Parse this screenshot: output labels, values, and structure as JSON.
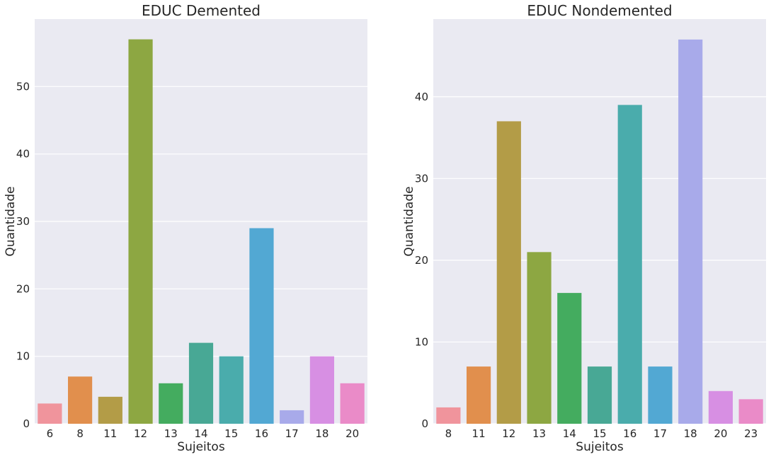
{
  "chart_data": [
    {
      "type": "bar",
      "title": "EDUC Demented",
      "xlabel": "Sujeitos",
      "ylabel": "Quantidade",
      "categories": [
        "6",
        "8",
        "11",
        "12",
        "13",
        "14",
        "15",
        "16",
        "17",
        "18",
        "20"
      ],
      "values": [
        3,
        7,
        4,
        57,
        6,
        12,
        10,
        29,
        2,
        10,
        6
      ],
      "ylim": [
        0,
        60
      ],
      "yticks": [
        0,
        10,
        20,
        30,
        40,
        50
      ],
      "grid": true,
      "colors": [
        "#f0949c",
        "#e18f4d",
        "#b39c47",
        "#8da742",
        "#44ac5f",
        "#48a895",
        "#4aacac",
        "#52a8d3",
        "#a8aaea",
        "#d78fe3",
        "#ea8bc8"
      ]
    },
    {
      "type": "bar",
      "title": "EDUC Nondemented",
      "xlabel": "Sujeitos",
      "ylabel": "Quantidade",
      "categories": [
        "8",
        "11",
        "12",
        "13",
        "14",
        "15",
        "16",
        "17",
        "18",
        "20",
        "23"
      ],
      "values": [
        2,
        7,
        37,
        21,
        16,
        7,
        39,
        7,
        47,
        4,
        3
      ],
      "ylim": [
        0,
        49.5
      ],
      "yticks": [
        0,
        10,
        20,
        30,
        40
      ],
      "grid": true,
      "colors": [
        "#f0949c",
        "#e18f4d",
        "#b39c47",
        "#8da742",
        "#44ac5f",
        "#48a895",
        "#4aacac",
        "#52a8d3",
        "#a8aaea",
        "#d78fe3",
        "#ea8bc8"
      ]
    }
  ]
}
